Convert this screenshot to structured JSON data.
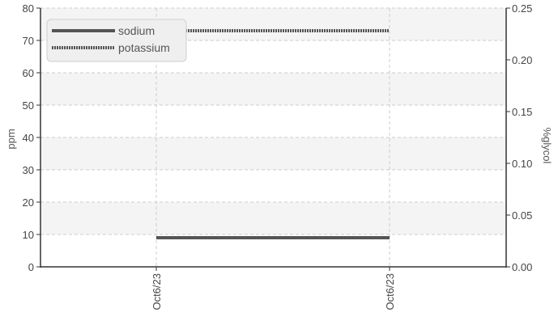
{
  "chart_data": {
    "type": "line",
    "x": [
      "Oct6/23",
      "Oct6/23"
    ],
    "x_tick_labels": [
      "Oct6/23",
      "Oct6/23"
    ],
    "y_left": {
      "label": "ppm",
      "range": [
        0,
        80
      ],
      "ticks": [
        0,
        10,
        20,
        30,
        40,
        50,
        60,
        70,
        80
      ]
    },
    "y_right": {
      "label": "%glycol",
      "range": [
        0,
        0.25
      ],
      "ticks": [
        "0.00",
        "0.05",
        "0.10",
        "0.15",
        "0.20",
        "0.25"
      ]
    },
    "series": [
      {
        "name": "sodium",
        "axis": "left",
        "style": "solid",
        "values": [
          9,
          9
        ]
      },
      {
        "name": "potassium",
        "axis": "left",
        "style": "dotted",
        "values": [
          73,
          73
        ]
      }
    ],
    "grid": true,
    "legend": "top-left",
    "colors": {
      "line": "#555555",
      "grid": "#cccccc",
      "band": "#f4f4f4"
    }
  }
}
